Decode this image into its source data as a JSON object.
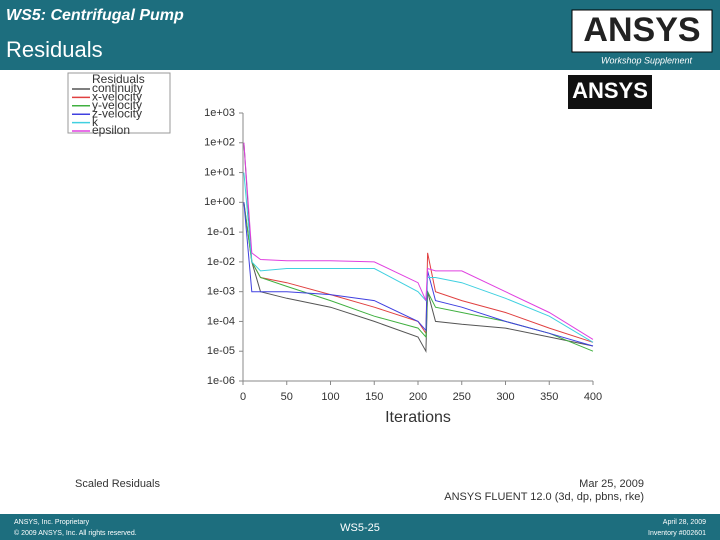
{
  "header": {
    "title": "WS5: Centrifugal Pump",
    "subtitle": "Residuals",
    "logo": "ANSYS",
    "supplement": "Workshop Supplement"
  },
  "footer": {
    "left": [
      "ANSYS, Inc. Proprietary",
      "© 2009 ANSYS, Inc. All rights reserved."
    ],
    "center": "WS5-25",
    "right": [
      "April 28, 2009",
      "Inventory #002601"
    ]
  },
  "chart_data": {
    "type": "line",
    "logo": "ANSYS",
    "legend_title": "Residuals",
    "x_label": "Iterations",
    "annotations": [
      "Scaled Residuals",
      "Mar 25, 2009",
      "ANSYS FLUENT 12.0 (3d, dp, pbns, rke)"
    ],
    "x": [
      1,
      10,
      20,
      50,
      100,
      150,
      200,
      209,
      211,
      220,
      250,
      300,
      350,
      400
    ],
    "series": [
      {
        "name": "continuity",
        "color": "#555555",
        "values": [
          100,
          0.01,
          0.001,
          0.0006,
          0.0003,
          0.0001,
          3e-05,
          1e-05,
          0.001,
          0.0001,
          8e-05,
          6e-05,
          3e-05,
          1.5e-05
        ]
      },
      {
        "name": "x-velocity",
        "color": "#e04040",
        "values": [
          1,
          0.01,
          0.003,
          0.002,
          0.0008,
          0.0003,
          0.0001,
          4e-05,
          0.02,
          0.001,
          0.0005,
          0.0002,
          6e-05,
          2e-05
        ]
      },
      {
        "name": "y-velocity",
        "color": "#40b040",
        "values": [
          1,
          0.01,
          0.003,
          0.0015,
          0.0005,
          0.00015,
          6e-05,
          3e-05,
          0.001,
          0.0003,
          0.0002,
          0.0001,
          4e-05,
          1e-05
        ]
      },
      {
        "name": "z-velocity",
        "color": "#4040e0",
        "values": [
          1,
          0.001,
          0.001,
          0.001,
          0.0008,
          0.0005,
          0.0001,
          5e-05,
          0.005,
          0.0005,
          0.0003,
          0.0001,
          4e-05,
          1.5e-05
        ]
      },
      {
        "name": "k",
        "color": "#40d0e0",
        "values": [
          10,
          0.01,
          0.005,
          0.006,
          0.006,
          0.006,
          0.001,
          0.0005,
          0.003,
          0.003,
          0.002,
          0.0006,
          0.00015,
          2e-05
        ]
      },
      {
        "name": "epsilon",
        "color": "#e040e0",
        "values": [
          100,
          0.02,
          0.012,
          0.011,
          0.011,
          0.01,
          0.002,
          0.0005,
          0.006,
          0.005,
          0.005,
          0.001,
          0.0002,
          2.5e-05
        ]
      }
    ],
    "xlim": [
      0,
      400
    ],
    "xticks": [
      0,
      50,
      100,
      150,
      200,
      250,
      300,
      350,
      400
    ],
    "ylim": [
      1e-06,
      1000
    ],
    "ylog": true,
    "yticks": [
      {
        "value": 1000,
        "label": "1e+03"
      },
      {
        "value": 100,
        "label": "1e+02"
      },
      {
        "value": 10,
        "label": "1e+01"
      },
      {
        "value": 1,
        "label": "1e+00"
      },
      {
        "value": 0.1,
        "label": "1e-01"
      },
      {
        "value": 0.01,
        "label": "1e-02"
      },
      {
        "value": 0.001,
        "label": "1e-03"
      },
      {
        "value": 0.0001,
        "label": "1e-04"
      },
      {
        "value": 1e-05,
        "label": "1e-05"
      },
      {
        "value": 1e-06,
        "label": "1e-06"
      }
    ]
  }
}
